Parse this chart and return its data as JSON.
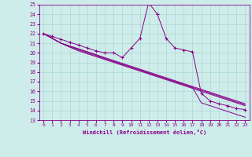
{
  "xlabel": "Windchill (Refroidissement éolien,°C)",
  "bg_color": "#ceecea",
  "grid_color": "#aad8d4",
  "line_color": "#880088",
  "xlim": [
    -0.5,
    23.5
  ],
  "ylim": [
    13,
    25
  ],
  "xticks": [
    0,
    1,
    2,
    3,
    4,
    5,
    6,
    7,
    8,
    9,
    10,
    11,
    12,
    13,
    14,
    15,
    16,
    17,
    18,
    19,
    20,
    21,
    22,
    23
  ],
  "yticks": [
    13,
    14,
    15,
    16,
    17,
    18,
    19,
    20,
    21,
    22,
    23,
    24,
    25
  ],
  "series": [
    [
      22.0,
      21.7,
      21.4,
      21.1,
      20.8,
      20.5,
      20.2,
      20.0,
      20.0,
      19.5,
      20.5,
      21.5,
      25.2,
      24.0,
      21.5,
      20.5,
      20.3,
      20.1,
      15.8,
      15.0,
      14.7,
      14.5,
      14.2,
      14.1
    ],
    [
      22.0,
      21.5,
      21.0,
      20.7,
      20.4,
      20.1,
      19.8,
      19.5,
      19.2,
      18.9,
      18.6,
      18.3,
      18.0,
      17.7,
      17.4,
      17.1,
      16.8,
      16.5,
      16.2,
      15.9,
      15.6,
      15.3,
      15.0,
      14.7
    ],
    [
      22.0,
      21.5,
      21.0,
      20.7,
      20.4,
      20.1,
      19.8,
      19.4,
      19.1,
      18.8,
      18.5,
      18.2,
      17.9,
      17.6,
      17.3,
      17.0,
      16.7,
      16.4,
      16.1,
      15.8,
      15.5,
      15.2,
      14.9,
      14.6
    ],
    [
      22.0,
      21.5,
      21.0,
      20.6,
      20.3,
      20.0,
      19.7,
      19.4,
      19.1,
      18.8,
      18.5,
      18.2,
      17.9,
      17.6,
      17.3,
      17.0,
      16.7,
      16.4,
      14.8,
      14.5,
      14.2,
      13.9,
      13.6,
      13.3
    ],
    [
      22.0,
      21.5,
      21.0,
      20.6,
      20.2,
      19.9,
      19.6,
      19.3,
      19.0,
      18.7,
      18.4,
      18.1,
      17.8,
      17.5,
      17.2,
      16.9,
      16.6,
      16.3,
      16.0,
      15.7,
      15.4,
      15.1,
      14.8,
      14.5
    ]
  ]
}
